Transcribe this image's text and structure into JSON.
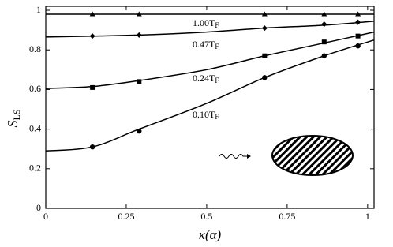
{
  "chart_data": {
    "type": "line",
    "xlabel": "κ(α)",
    "ylabel": "S",
    "ylabel_sub": "LS",
    "xlim": [
      0,
      1.02
    ],
    "ylim": [
      0,
      1.02
    ],
    "xticks": [
      0,
      0.25,
      0.5,
      0.75,
      1
    ],
    "yticks": [
      0,
      0.2,
      0.4,
      0.6,
      0.8,
      1
    ],
    "color": "#000000",
    "series": [
      {
        "name": "1.00T",
        "name_sub": "F",
        "marker": "triangle",
        "x": [
          0.145,
          0.29,
          0.68,
          0.865,
          0.97
        ],
        "values": [
          0.98,
          0.98,
          0.98,
          0.98,
          0.98
        ],
        "curve_x": [
          0,
          0.5,
          1.02
        ],
        "curve_values": [
          0.98,
          0.98,
          0.98
        ]
      },
      {
        "name": "0.47T",
        "name_sub": "F",
        "marker": "diamond",
        "x": [
          0.145,
          0.29,
          0.68,
          0.865,
          0.97
        ],
        "values": [
          0.87,
          0.875,
          0.91,
          0.93,
          0.94
        ],
        "curve_x": [
          0,
          0.29,
          0.5,
          0.68,
          0.865,
          1.02
        ],
        "curve_values": [
          0.865,
          0.875,
          0.89,
          0.91,
          0.925,
          0.945
        ]
      },
      {
        "name": "0.24T",
        "name_sub": "F",
        "marker": "square",
        "x": [
          0.145,
          0.29,
          0.68,
          0.865,
          0.97
        ],
        "values": [
          0.61,
          0.64,
          0.77,
          0.84,
          0.87
        ],
        "curve_x": [
          0,
          0.145,
          0.29,
          0.5,
          0.68,
          0.865,
          1.02
        ],
        "curve_values": [
          0.605,
          0.615,
          0.645,
          0.7,
          0.77,
          0.835,
          0.89
        ]
      },
      {
        "name": "0.10T",
        "name_sub": "F",
        "marker": "circle",
        "x": [
          0.145,
          0.29,
          0.68,
          0.865,
          0.97
        ],
        "values": [
          0.31,
          0.39,
          0.66,
          0.77,
          0.82
        ],
        "curve_x": [
          0,
          0.145,
          0.29,
          0.5,
          0.68,
          0.865,
          1.02
        ],
        "curve_values": [
          0.29,
          0.31,
          0.4,
          0.53,
          0.66,
          0.77,
          0.85
        ]
      }
    ]
  }
}
